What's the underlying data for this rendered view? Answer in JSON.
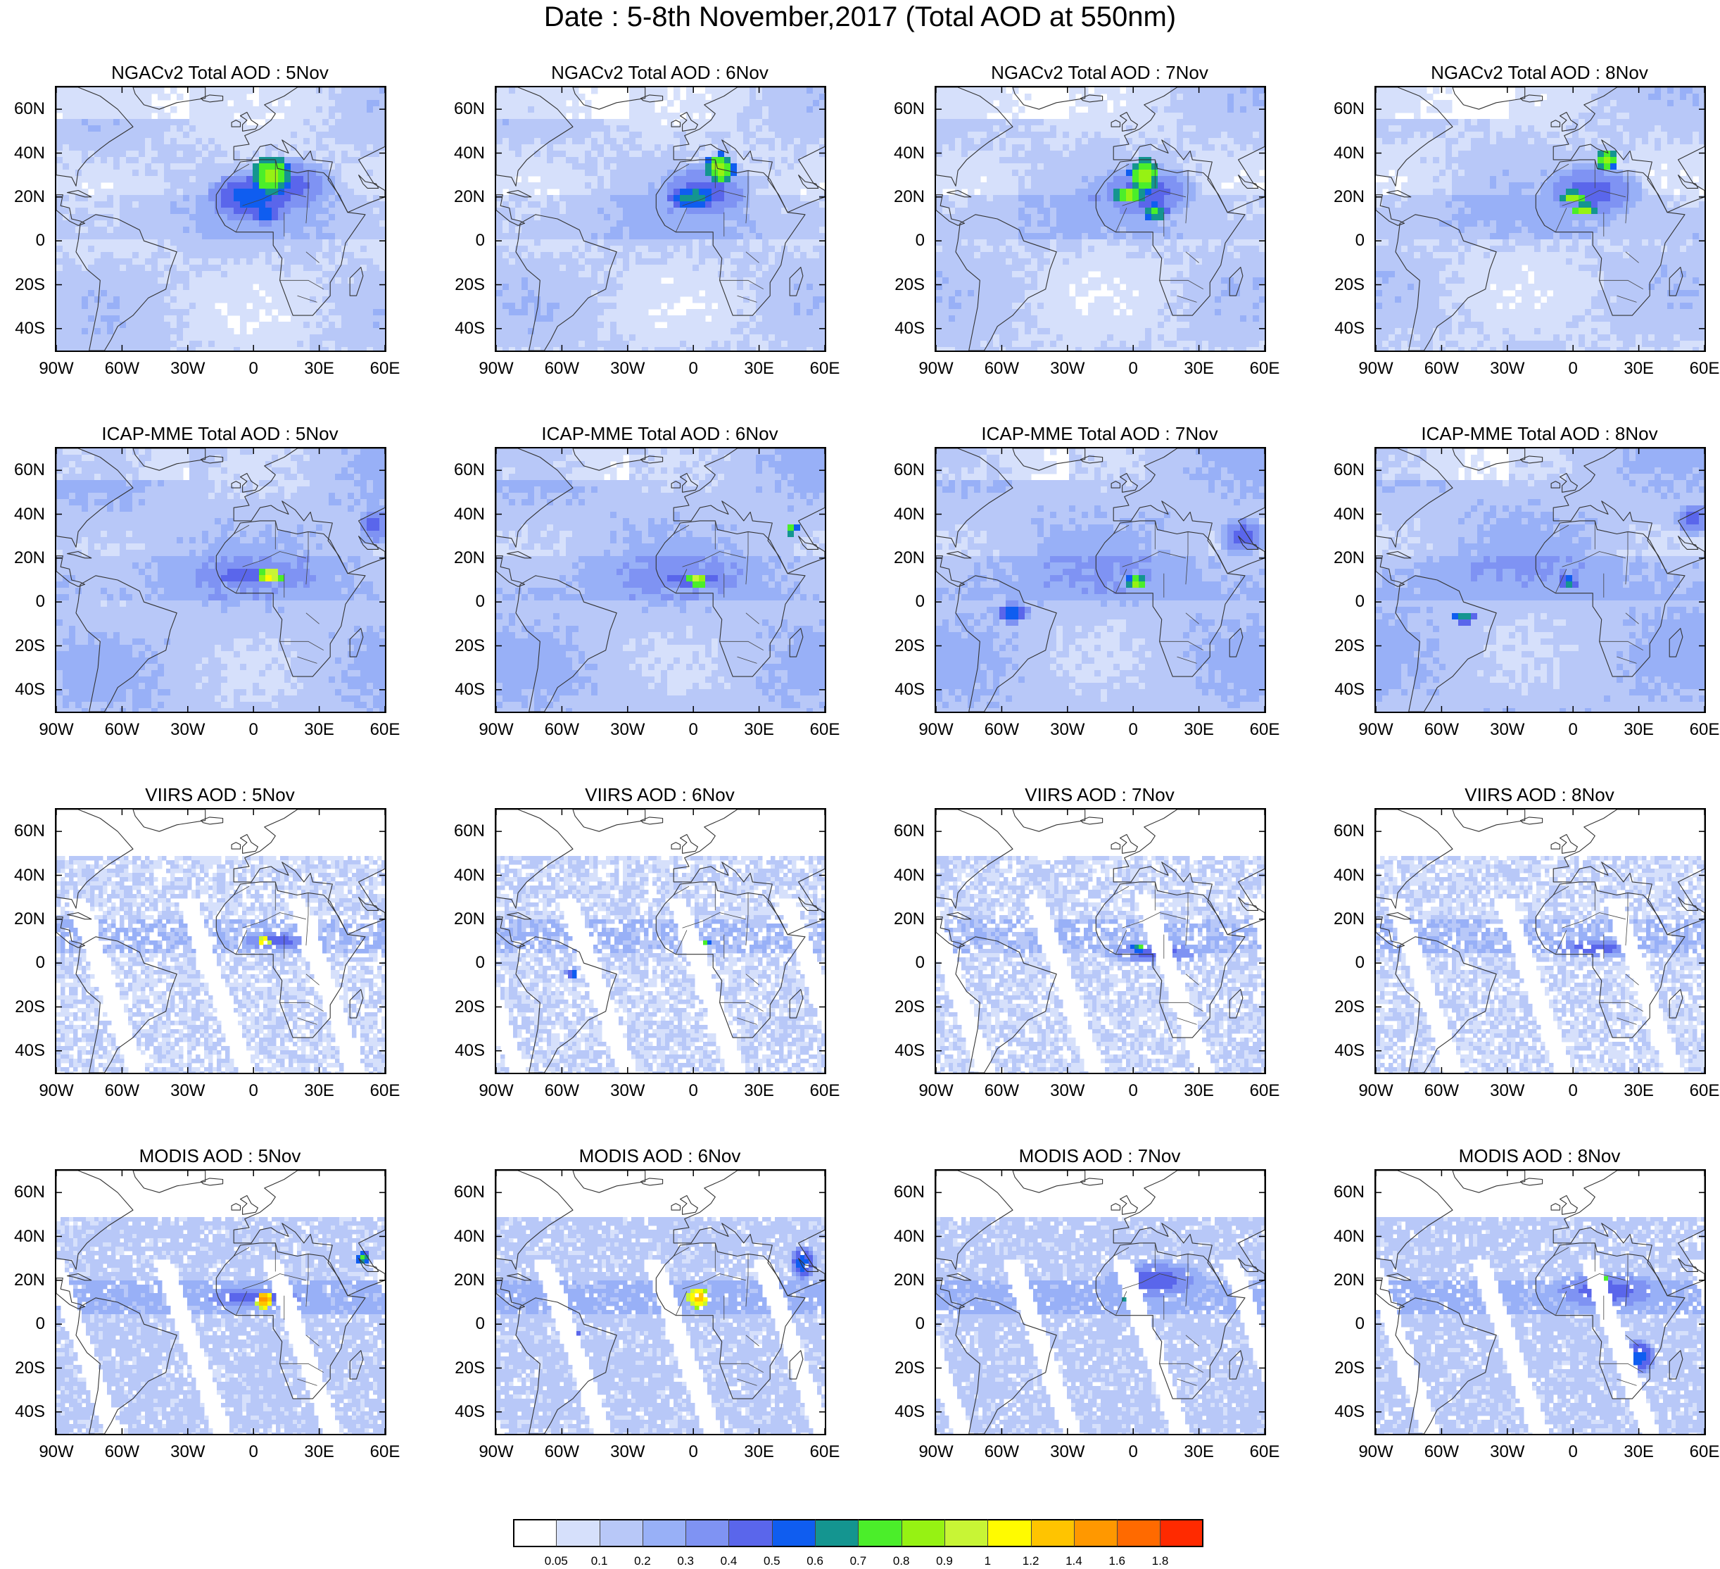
{
  "title": "Date : 5-8th November,2017 (Total AOD at 550nm)",
  "panels": [
    {
      "title": "NGACv2 Total AOD : 5Nov",
      "source": "NGACv2",
      "day": 5,
      "kind": "model",
      "hotspots": [
        {
          "lon": 8,
          "lat": 30,
          "level": 9,
          "rlon": 9,
          "rlat": 9
        },
        {
          "lon": 0,
          "lat": 20,
          "level": 6,
          "rlon": 22,
          "rlat": 12
        },
        {
          "lon": 5,
          "lat": 12,
          "level": 6,
          "rlon": 9,
          "rlat": 5
        },
        {
          "lon": 15,
          "lat": 25,
          "level": 5,
          "rlon": 25,
          "rlat": 14
        }
      ]
    },
    {
      "title": "NGACv2 Total AOD : 6Nov",
      "source": "NGACv2",
      "day": 6,
      "kind": "model",
      "hotspots": [
        {
          "lon": 12,
          "lat": 33,
          "level": 9,
          "rlon": 7,
          "rlat": 7
        },
        {
          "lon": 0,
          "lat": 20,
          "level": 7,
          "rlon": 12,
          "rlat": 6
        },
        {
          "lon": 5,
          "lat": 22,
          "level": 5,
          "rlon": 24,
          "rlat": 14
        }
      ]
    },
    {
      "title": "NGACv2 Total AOD : 7Nov",
      "source": "NGACv2",
      "day": 7,
      "kind": "model",
      "hotspots": [
        {
          "lon": 5,
          "lat": 30,
          "level": 9,
          "rlon": 7,
          "rlat": 8
        },
        {
          "lon": -2,
          "lat": 21,
          "level": 9,
          "rlon": 9,
          "rlat": 4
        },
        {
          "lon": 10,
          "lat": 13,
          "level": 8,
          "rlon": 6,
          "rlat": 4
        },
        {
          "lon": 5,
          "lat": 22,
          "level": 5,
          "rlon": 26,
          "rlat": 14
        }
      ]
    },
    {
      "title": "NGACv2 Total AOD : 8Nov",
      "source": "NGACv2",
      "day": 8,
      "kind": "model",
      "hotspots": [
        {
          "lon": 15,
          "lat": 37,
          "level": 9,
          "rlon": 5,
          "rlat": 5
        },
        {
          "lon": 0,
          "lat": 20,
          "level": 9,
          "rlon": 6,
          "rlat": 3
        },
        {
          "lon": 5,
          "lat": 14,
          "level": 9,
          "rlon": 6,
          "rlat": 3
        },
        {
          "lon": 8,
          "lat": 22,
          "level": 5,
          "rlon": 25,
          "rlat": 14
        }
      ]
    },
    {
      "title": "ICAP-MME Total AOD : 5Nov",
      "source": "ICAP-MME",
      "day": 5,
      "kind": "model",
      "hotspots": [
        {
          "lon": 8,
          "lat": 12,
          "level": 11,
          "rlon": 5,
          "rlat": 4
        },
        {
          "lon": 0,
          "lat": 12,
          "level": 5,
          "rlon": 40,
          "rlat": 6
        },
        {
          "lon": 55,
          "lat": 35,
          "level": 5,
          "rlon": 8,
          "rlat": 10
        }
      ]
    },
    {
      "title": "ICAP-MME Total AOD : 6Nov",
      "source": "ICAP-MME",
      "day": 6,
      "kind": "model",
      "hotspots": [
        {
          "lon": 2,
          "lat": 10,
          "level": 10,
          "rlon": 5,
          "rlat": 3
        },
        {
          "lon": 45,
          "lat": 33,
          "level": 8,
          "rlon": 3,
          "rlat": 3
        },
        {
          "lon": 0,
          "lat": 10,
          "level": 5,
          "rlon": 30,
          "rlat": 6
        }
      ]
    },
    {
      "title": "ICAP-MME Total AOD : 7Nov",
      "source": "ICAP-MME",
      "day": 7,
      "kind": "model",
      "hotspots": [
        {
          "lon": 2,
          "lat": 9,
          "level": 9,
          "rlon": 5,
          "rlat": 3
        },
        {
          "lon": -55,
          "lat": -5,
          "level": 6,
          "rlon": 8,
          "rlat": 5
        },
        {
          "lon": 50,
          "lat": 30,
          "level": 5,
          "rlon": 12,
          "rlat": 10
        }
      ]
    },
    {
      "title": "ICAP-MME Total AOD : 8Nov",
      "source": "ICAP-MME",
      "day": 8,
      "kind": "model",
      "hotspots": [
        {
          "lon": -2,
          "lat": 9,
          "level": 7,
          "rlon": 4,
          "rlat": 3
        },
        {
          "lon": -50,
          "lat": -7,
          "level": 7,
          "rlon": 6,
          "rlat": 3
        },
        {
          "lon": 55,
          "lat": 38,
          "level": 5,
          "rlon": 10,
          "rlat": 8
        }
      ]
    },
    {
      "title": "VIIRS AOD : 5Nov",
      "source": "VIIRS",
      "day": 5,
      "kind": "obs",
      "hotspots": [
        {
          "lon": 5,
          "lat": 10,
          "level": 12,
          "rlon": 3,
          "rlat": 2
        },
        {
          "lon": 10,
          "lat": 10,
          "level": 5,
          "rlon": 20,
          "rlat": 5
        }
      ]
    },
    {
      "title": "VIIRS AOD : 6Nov",
      "source": "VIIRS",
      "day": 6,
      "kind": "obs",
      "hotspots": [
        {
          "lon": 5,
          "lat": 9,
          "level": 8,
          "rlon": 3,
          "rlat": 2
        },
        {
          "lon": -55,
          "lat": -5,
          "level": 6,
          "rlon": 4,
          "rlat": 3
        }
      ]
    },
    {
      "title": "VIIRS AOD : 7Nov",
      "source": "VIIRS",
      "day": 7,
      "kind": "obs",
      "hotspots": [
        {
          "lon": 3,
          "lat": 7,
          "level": 8,
          "rlon": 4,
          "rlat": 2
        },
        {
          "lon": 10,
          "lat": 5,
          "level": 5,
          "rlon": 25,
          "rlat": 6
        }
      ]
    },
    {
      "title": "VIIRS AOD : 8Nov",
      "source": "VIIRS",
      "day": 8,
      "kind": "obs",
      "hotspots": [
        {
          "lon": 10,
          "lat": 7,
          "level": 5,
          "rlon": 25,
          "rlat": 5
        }
      ]
    },
    {
      "title": "MODIS AOD : 5Nov",
      "source": "MODIS",
      "day": 5,
      "kind": "obs",
      "hotspots": [
        {
          "lon": 5,
          "lat": 11,
          "level": 13,
          "rlon": 4,
          "rlat": 4
        },
        {
          "lon": 50,
          "lat": 30,
          "level": 8,
          "rlon": 3,
          "rlat": 3
        },
        {
          "lon": 0,
          "lat": 12,
          "level": 5,
          "rlon": 30,
          "rlat": 6
        }
      ]
    },
    {
      "title": "MODIS AOD : 6Nov",
      "source": "MODIS",
      "day": 6,
      "kind": "obs",
      "hotspots": [
        {
          "lon": 2,
          "lat": 12,
          "level": 12,
          "rlon": 5,
          "rlat": 5
        },
        {
          "lon": -55,
          "lat": -5,
          "level": 8,
          "rlon": 3,
          "rlat": 2
        },
        {
          "lon": 50,
          "lat": 28,
          "level": 6,
          "rlon": 6,
          "rlat": 8
        }
      ]
    },
    {
      "title": "MODIS AOD : 7Nov",
      "source": "MODIS",
      "day": 7,
      "kind": "obs",
      "hotspots": [
        {
          "lon": 0,
          "lat": 12,
          "level": 9,
          "rlon": 5,
          "rlat": 4
        },
        {
          "lon": 10,
          "lat": 20,
          "level": 5,
          "rlon": 25,
          "rlat": 10
        }
      ]
    },
    {
      "title": "MODIS AOD : 8Nov",
      "source": "MODIS",
      "day": 8,
      "kind": "obs",
      "hotspots": [
        {
          "lon": 15,
          "lat": 20,
          "level": 9,
          "rlon": 2,
          "rlat": 2
        },
        {
          "lon": 30,
          "lat": -15,
          "level": 6,
          "rlon": 8,
          "rlat": 8
        },
        {
          "lon": 15,
          "lat": 15,
          "level": 5,
          "rlon": 30,
          "rlat": 10
        }
      ]
    }
  ],
  "lat_ticks": [
    "60N",
    "40N",
    "20N",
    "0",
    "20S",
    "40S"
  ],
  "lat_values": [
    60,
    40,
    20,
    0,
    -20,
    -40
  ],
  "lon_ticks": [
    "90W",
    "60W",
    "30W",
    "0",
    "30E",
    "60E"
  ],
  "lon_values": [
    -90,
    -60,
    -30,
    0,
    30,
    60
  ],
  "map_extent": {
    "lon_min": -90,
    "lon_max": 60,
    "lat_min": -50,
    "lat_max": 70
  },
  "colorbar": {
    "colors": [
      "#ffffff",
      "#d6e0fb",
      "#b8c8f8",
      "#98b0f7",
      "#7f93f3",
      "#5a66eb",
      "#0f5df0",
      "#149590",
      "#4bee2a",
      "#96f213",
      "#c8f535",
      "#fffb00",
      "#ffc400",
      "#ff9800",
      "#ff6a00",
      "#ff2a00"
    ],
    "labels": [
      "0.05",
      "0.1",
      "0.2",
      "0.3",
      "0.4",
      "0.5",
      "0.6",
      "0.7",
      "0.8",
      "0.9",
      "1",
      "1.2",
      "1.4",
      "1.6",
      "1.8"
    ]
  }
}
